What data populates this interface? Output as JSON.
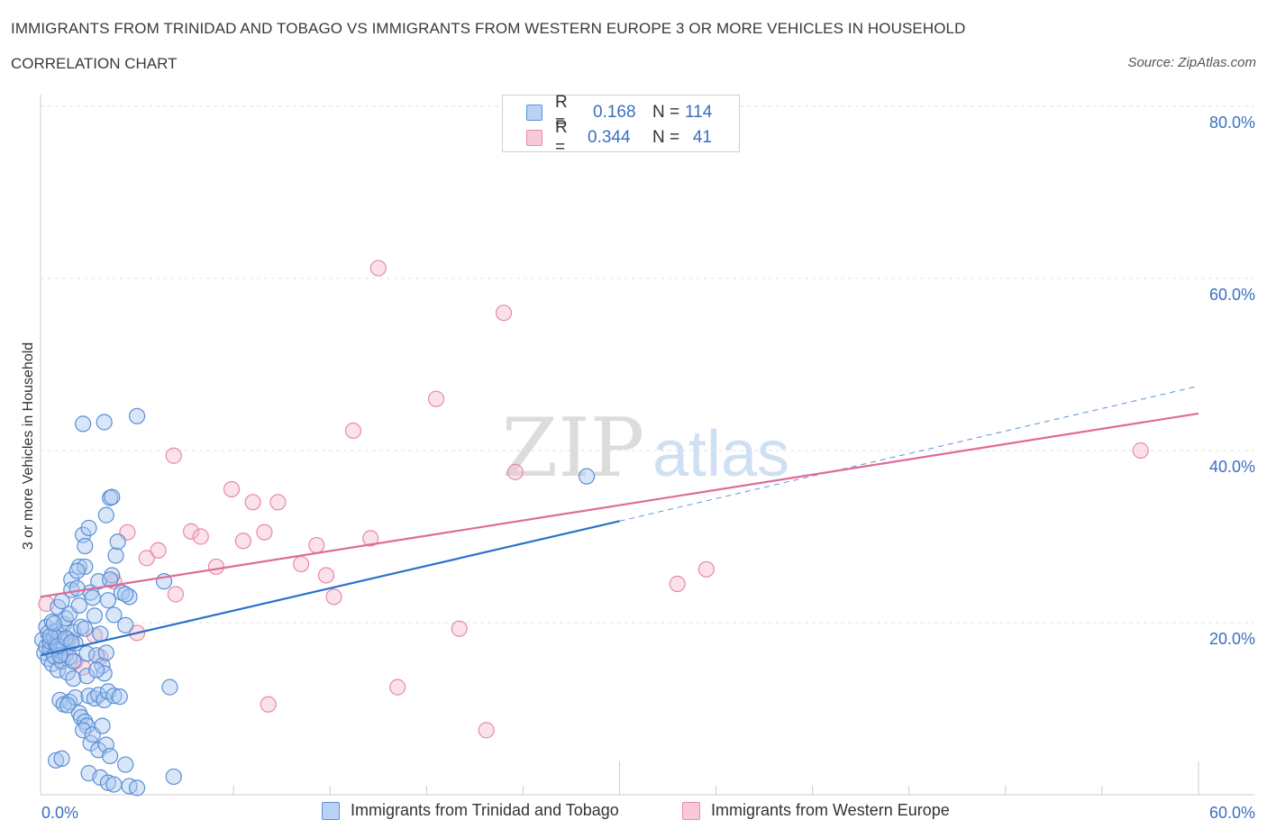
{
  "header": {
    "title": "IMMIGRANTS FROM TRINIDAD AND TOBAGO VS IMMIGRANTS FROM WESTERN EUROPE 3 OR MORE VEHICLES IN HOUSEHOLD",
    "subtitle": "CORRELATION CHART",
    "source": "Source: ZipAtlas.com"
  },
  "watermark": {
    "zip": "ZIP",
    "atlas": "atlas"
  },
  "legend": {
    "r_label": "R =",
    "n_label": "N =",
    "series": [
      {
        "r": "0.168",
        "n": "114"
      },
      {
        "r": "0.344",
        "n": "41"
      }
    ]
  },
  "colors": {
    "blue_fill": "#a9c8f0",
    "blue_stroke": "#5b8fd6",
    "blue_line": "#2a72c9",
    "pink_fill": "#f5bcd0",
    "pink_stroke": "#e88aa8",
    "pink_line": "#e06b95",
    "tick_text": "#3a6fc0",
    "grid": "#e2e2e2"
  },
  "chart_data": {
    "type": "scatter",
    "xlabel": "",
    "ylabel": "3 or more Vehicles in Household",
    "xlim": [
      0,
      60
    ],
    "ylim": [
      0,
      80
    ],
    "x_tick_labels": [
      "0.0%",
      "60.0%"
    ],
    "y_ticks": [
      20,
      40,
      60,
      80
    ],
    "y_tick_labels": [
      "20.0%",
      "40.0%",
      "60.0%",
      "80.0%"
    ],
    "grid": true,
    "legend_position": "top-center",
    "series": [
      {
        "name": "Immigrants from Trinidad and Tobago",
        "color": "#5b8fd6",
        "trend": {
          "x": [
            0,
            30
          ],
          "y": [
            16.2,
            31.8
          ],
          "dashed_extension": {
            "x": [
              30,
              60
            ],
            "y": [
              31.8,
              47.5
            ]
          }
        },
        "points": [
          [
            0.1,
            18.0
          ],
          [
            0.2,
            16.5
          ],
          [
            0.3,
            17.2
          ],
          [
            0.3,
            19.5
          ],
          [
            0.4,
            15.8
          ],
          [
            0.4,
            18.8
          ],
          [
            0.5,
            16.9
          ],
          [
            0.5,
            17.8
          ],
          [
            0.6,
            20.1
          ],
          [
            0.6,
            15.2
          ],
          [
            0.7,
            18.3
          ],
          [
            0.7,
            16.1
          ],
          [
            0.8,
            17.5
          ],
          [
            0.8,
            19.0
          ],
          [
            0.9,
            14.5
          ],
          [
            0.9,
            21.8
          ],
          [
            1.0,
            16.8
          ],
          [
            1.0,
            18.6
          ],
          [
            1.1,
            15.5
          ],
          [
            1.1,
            22.5
          ],
          [
            1.2,
            17.1
          ],
          [
            1.2,
            19.8
          ],
          [
            1.3,
            16.3
          ],
          [
            1.3,
            20.5
          ],
          [
            1.4,
            18.1
          ],
          [
            1.4,
            14.2
          ],
          [
            1.5,
            21.0
          ],
          [
            1.5,
            16.0
          ],
          [
            1.6,
            25.0
          ],
          [
            1.6,
            23.8
          ],
          [
            1.7,
            18.9
          ],
          [
            1.7,
            15.5
          ],
          [
            1.8,
            17.6
          ],
          [
            1.9,
            24.0
          ],
          [
            2.0,
            26.5
          ],
          [
            2.0,
            22.0
          ],
          [
            2.1,
            19.5
          ],
          [
            2.2,
            30.2
          ],
          [
            2.3,
            28.9
          ],
          [
            2.3,
            19.3
          ],
          [
            2.4,
            16.4
          ],
          [
            2.5,
            31.0
          ],
          [
            2.6,
            23.5
          ],
          [
            2.7,
            22.9
          ],
          [
            2.8,
            20.8
          ],
          [
            2.9,
            16.2
          ],
          [
            3.0,
            24.8
          ],
          [
            3.1,
            18.7
          ],
          [
            3.2,
            15.0
          ],
          [
            3.3,
            14.1
          ],
          [
            3.4,
            32.5
          ],
          [
            3.5,
            22.6
          ],
          [
            3.6,
            34.5
          ],
          [
            3.7,
            25.5
          ],
          [
            3.8,
            20.9
          ],
          [
            3.9,
            27.8
          ],
          [
            4.0,
            29.4
          ],
          [
            4.2,
            23.5
          ],
          [
            4.4,
            19.7
          ],
          [
            4.6,
            23.0
          ],
          [
            5.0,
            44.0
          ],
          [
            3.3,
            43.3
          ],
          [
            2.2,
            43.1
          ],
          [
            3.7,
            34.6
          ],
          [
            4.4,
            23.3
          ],
          [
            6.4,
            24.8
          ],
          [
            6.7,
            12.5
          ],
          [
            2.3,
            26.5
          ],
          [
            1.9,
            26.0
          ],
          [
            3.6,
            25.0
          ],
          [
            1.0,
            11.0
          ],
          [
            1.2,
            10.5
          ],
          [
            1.5,
            10.8
          ],
          [
            1.8,
            11.3
          ],
          [
            2.0,
            9.5
          ],
          [
            2.1,
            9.0
          ],
          [
            2.3,
            8.5
          ],
          [
            2.4,
            8.0
          ],
          [
            2.5,
            11.5
          ],
          [
            2.8,
            11.2
          ],
          [
            3.0,
            11.6
          ],
          [
            3.3,
            11.0
          ],
          [
            3.5,
            12.0
          ],
          [
            3.8,
            11.5
          ],
          [
            4.1,
            11.4
          ],
          [
            2.6,
            6.0
          ],
          [
            3.0,
            5.2
          ],
          [
            3.4,
            5.8
          ],
          [
            3.6,
            4.5
          ],
          [
            4.4,
            3.5
          ],
          [
            2.5,
            2.5
          ],
          [
            3.1,
            2.0
          ],
          [
            3.5,
            1.4
          ],
          [
            3.8,
            1.2
          ],
          [
            4.6,
            1.0
          ],
          [
            5.0,
            0.8
          ],
          [
            6.9,
            2.1
          ],
          [
            0.8,
            4.0
          ],
          [
            1.1,
            4.2
          ],
          [
            2.2,
            7.5
          ],
          [
            2.7,
            7.0
          ],
          [
            3.2,
            8.0
          ],
          [
            1.4,
            10.4
          ],
          [
            1.7,
            13.5
          ],
          [
            2.4,
            13.8
          ],
          [
            2.9,
            14.5
          ],
          [
            3.4,
            16.5
          ],
          [
            1.0,
            16.2
          ],
          [
            0.5,
            18.4
          ],
          [
            0.7,
            19.9
          ],
          [
            0.9,
            17.3
          ],
          [
            1.3,
            18.2
          ],
          [
            1.6,
            17.7
          ],
          [
            28.3,
            37.0
          ]
        ]
      },
      {
        "name": "Immigrants from Western Europe",
        "color": "#e88aa8",
        "trend": {
          "x": [
            0,
            60
          ],
          "y": [
            23.0,
            44.3
          ]
        },
        "points": [
          [
            0.3,
            22.2
          ],
          [
            0.5,
            17.5
          ],
          [
            0.8,
            16.0
          ],
          [
            1.2,
            17.0
          ],
          [
            1.8,
            15.5
          ],
          [
            2.2,
            14.8
          ],
          [
            2.8,
            18.5
          ],
          [
            3.1,
            16.0
          ],
          [
            3.8,
            24.8
          ],
          [
            4.5,
            30.5
          ],
          [
            5.0,
            18.8
          ],
          [
            5.5,
            27.5
          ],
          [
            6.1,
            28.4
          ],
          [
            7.0,
            23.3
          ],
          [
            7.8,
            30.6
          ],
          [
            8.3,
            30.0
          ],
          [
            9.1,
            26.5
          ],
          [
            9.9,
            35.5
          ],
          [
            10.5,
            29.5
          ],
          [
            11.0,
            34.0
          ],
          [
            11.6,
            30.5
          ],
          [
            11.8,
            10.5
          ],
          [
            12.3,
            34.0
          ],
          [
            13.5,
            26.8
          ],
          [
            14.3,
            29.0
          ],
          [
            14.8,
            25.5
          ],
          [
            15.2,
            23.0
          ],
          [
            16.2,
            42.3
          ],
          [
            17.1,
            29.8
          ],
          [
            17.5,
            61.2
          ],
          [
            18.5,
            12.5
          ],
          [
            20.5,
            46.0
          ],
          [
            21.7,
            19.3
          ],
          [
            23.1,
            7.5
          ],
          [
            24.0,
            56.0
          ],
          [
            24.6,
            37.5
          ],
          [
            33.0,
            24.5
          ],
          [
            34.5,
            26.2
          ],
          [
            57.0,
            40.0
          ],
          [
            6.9,
            39.4
          ],
          [
            1.5,
            18.0
          ]
        ]
      }
    ]
  },
  "bottom_legend": {
    "items": [
      "Immigrants from Trinidad and Tobago",
      "Immigrants from Western Europe"
    ]
  }
}
